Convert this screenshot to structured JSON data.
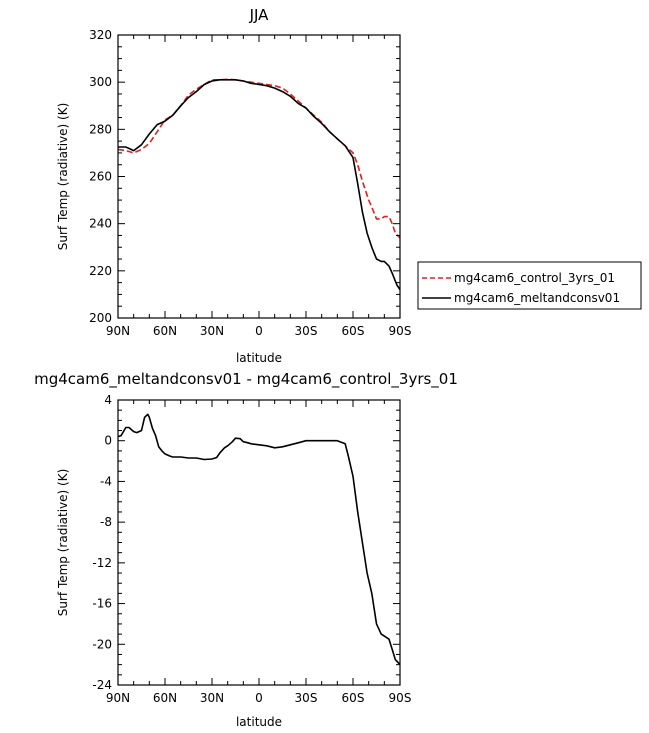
{
  "chart_data": [
    {
      "type": "line",
      "title": "JJA",
      "xlabel": "latitude",
      "ylabel": "Surf Temp (radiative) (K)",
      "xlim": [
        90,
        -90
      ],
      "ylim": [
        200,
        320
      ],
      "x_ticks": [
        90,
        60,
        30,
        0,
        -30,
        -60,
        -90
      ],
      "x_tick_labels": [
        "90N",
        "60N",
        "30N",
        "0",
        "30S",
        "60S",
        "90S"
      ],
      "y_ticks": [
        200,
        220,
        240,
        260,
        280,
        300,
        320
      ],
      "y_tick_labels": [
        "200",
        "220",
        "240",
        "260",
        "280",
        "300",
        "320"
      ],
      "grid": false,
      "legend_position": "right",
      "series": [
        {
          "name": "mg4cam6_control_3yrs_01",
          "color": "#e02020",
          "dash": "dashed",
          "x": [
            90,
            85,
            80,
            75,
            70,
            65,
            60,
            55,
            50,
            45,
            40,
            35,
            30,
            25,
            20,
            15,
            10,
            5,
            0,
            -5,
            -10,
            -15,
            -20,
            -25,
            -30,
            -35,
            -40,
            -45,
            -50,
            -55,
            -60,
            -63,
            -66,
            -70,
            -72,
            -75,
            -78,
            -80,
            -83,
            -85,
            -87,
            -90
          ],
          "y": [
            271.5,
            271,
            270,
            271.5,
            274,
            279,
            284,
            286,
            290,
            294.5,
            297,
            299,
            301,
            301,
            301.2,
            301,
            300.5,
            300,
            299.5,
            299,
            298.5,
            297.5,
            295,
            292,
            289,
            286,
            283,
            279,
            276,
            273,
            270,
            265,
            258,
            250,
            247,
            242,
            242,
            243,
            243,
            240,
            236,
            234
          ]
        },
        {
          "name": "mg4cam6_meltandconsv01",
          "color": "#000000",
          "dash": "solid",
          "x": [
            90,
            85,
            80,
            75,
            70,
            65,
            60,
            55,
            50,
            45,
            40,
            35,
            30,
            25,
            20,
            15,
            10,
            5,
            0,
            -5,
            -10,
            -15,
            -20,
            -25,
            -30,
            -35,
            -40,
            -45,
            -50,
            -55,
            -60,
            -63,
            -66,
            -69,
            -72,
            -75,
            -78,
            -80,
            -83,
            -85,
            -88,
            -90
          ],
          "y": [
            272.5,
            272.5,
            271,
            273.5,
            278,
            282,
            283.5,
            286,
            290,
            293.5,
            296,
            299,
            300.5,
            301,
            301,
            301,
            300.5,
            299.5,
            299,
            298.5,
            297.5,
            296,
            294,
            291,
            289,
            285.5,
            282.5,
            279,
            276,
            273,
            268,
            257,
            245,
            236,
            230,
            225,
            224,
            224,
            222,
            219,
            214,
            212
          ]
        }
      ]
    },
    {
      "type": "line",
      "title": "mg4cam6_meltandconsv01 - mg4cam6_control_3yrs_01",
      "xlabel": "latitude",
      "ylabel": "Surf Temp (radiative) (K)",
      "xlim": [
        90,
        -90
      ],
      "ylim": [
        -24,
        4
      ],
      "x_ticks": [
        90,
        60,
        30,
        0,
        -30,
        -60,
        -90
      ],
      "x_tick_labels": [
        "90N",
        "60N",
        "30N",
        "0",
        "30S",
        "60S",
        "90S"
      ],
      "y_ticks": [
        -24,
        -20,
        -16,
        -12,
        -8,
        -4,
        0,
        4
      ],
      "y_tick_labels": [
        "-24",
        "-20",
        "-16",
        "-12",
        "-8",
        "-4",
        "0",
        "4"
      ],
      "grid": false,
      "series": [
        {
          "color": "#000000",
          "dash": "solid",
          "x": [
            90,
            88,
            85,
            83,
            80,
            78,
            75,
            73,
            71,
            70,
            68,
            66,
            64,
            62,
            60,
            57,
            55,
            50,
            45,
            40,
            35,
            30,
            27,
            25,
            22,
            20,
            17,
            15,
            12,
            10,
            7,
            5,
            0,
            -5,
            -10,
            -15,
            -20,
            -25,
            -30,
            -35,
            -40,
            -45,
            -50,
            -55,
            -57,
            -60,
            -63,
            -66,
            -69,
            -72,
            -75,
            -78,
            -80,
            -83,
            -85,
            -87,
            -90
          ],
          "y": [
            0.4,
            0.5,
            1.3,
            1.3,
            0.9,
            0.8,
            1.0,
            2.3,
            2.6,
            2.3,
            1.2,
            0.5,
            -0.6,
            -1.0,
            -1.3,
            -1.5,
            -1.6,
            -1.6,
            -1.7,
            -1.7,
            -1.85,
            -1.8,
            -1.65,
            -1.2,
            -0.7,
            -0.5,
            -0.1,
            0.25,
            0.2,
            -0.1,
            -0.2,
            -0.3,
            -0.4,
            -0.5,
            -0.7,
            -0.6,
            -0.4,
            -0.2,
            0.0,
            0.0,
            0.0,
            0.0,
            0.0,
            -0.3,
            -1.5,
            -3.5,
            -7,
            -10,
            -13,
            -15,
            -18,
            -19,
            -19.2,
            -19.5,
            -20.5,
            -21.5,
            -22
          ]
        }
      ]
    }
  ]
}
